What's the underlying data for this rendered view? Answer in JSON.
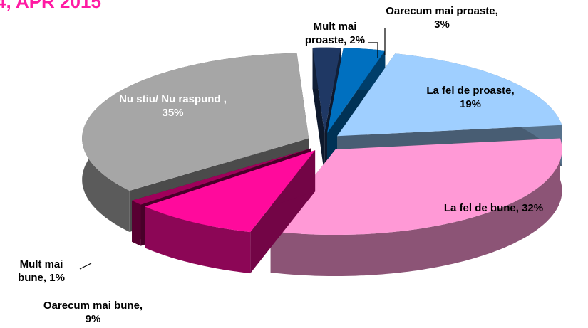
{
  "chart_data": {
    "type": "pie3d",
    "title": "4, APR 2015",
    "values": [
      2,
      3,
      19,
      32,
      9,
      1,
      35
    ],
    "value_labels": [
      "Mult mai proaste, 2%",
      "Oarecum mai proaste, 3%",
      "La fel de proaste, 19%",
      "La fel de bune, 32%",
      "Oarecum mai bune, 9%",
      "Mult mai bune, 1%",
      "Nu stiu/ Nu raspund , 35%"
    ],
    "colors": [
      "#1f3864",
      "#0070c0",
      "#9fcfff",
      "#ff99d6",
      "#ff0a9c",
      "#a0005a",
      "#a6a6a6"
    ]
  }
}
